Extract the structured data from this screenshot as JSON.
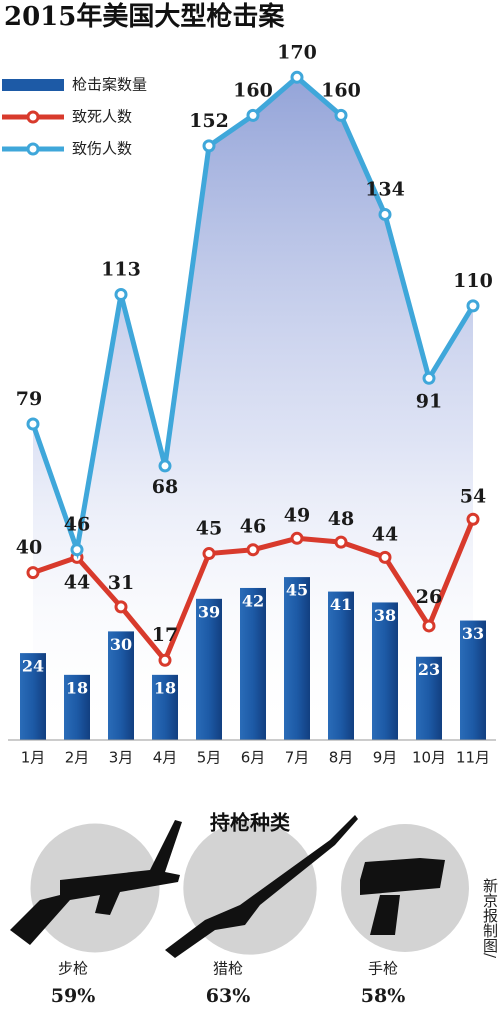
{
  "chart_data": [
    {
      "type": "bar",
      "title": "2015年美国大型枪击案",
      "categories": [
        "1月",
        "2月",
        "3月",
        "4月",
        "5月",
        "6月",
        "7月",
        "8月",
        "9月",
        "10月",
        "11月"
      ],
      "series": [
        {
          "name": "枪击案数量",
          "type": "bar",
          "color": "#1d5aa6",
          "values": [
            24,
            18,
            30,
            18,
            39,
            42,
            45,
            41,
            38,
            23,
            33
          ]
        },
        {
          "name": "致死人数",
          "type": "line",
          "color": "#d83a2c",
          "values": [
            40,
            44,
            31,
            17,
            45,
            46,
            49,
            48,
            44,
            26,
            54
          ]
        },
        {
          "name": "致伤人数",
          "type": "line",
          "color": "#3fa7da",
          "values": [
            79,
            46,
            113,
            68,
            152,
            160,
            170,
            160,
            134,
            91,
            110
          ]
        }
      ]
    },
    {
      "type": "circles",
      "title": "持枪种类",
      "categories": [
        "步枪",
        "猎枪",
        "手枪"
      ],
      "values": [
        59,
        63,
        58
      ],
      "value_labels": [
        "59%",
        "63%",
        "58%"
      ],
      "color": "#d3d3d3"
    }
  ],
  "credit": "新京报制图/"
}
